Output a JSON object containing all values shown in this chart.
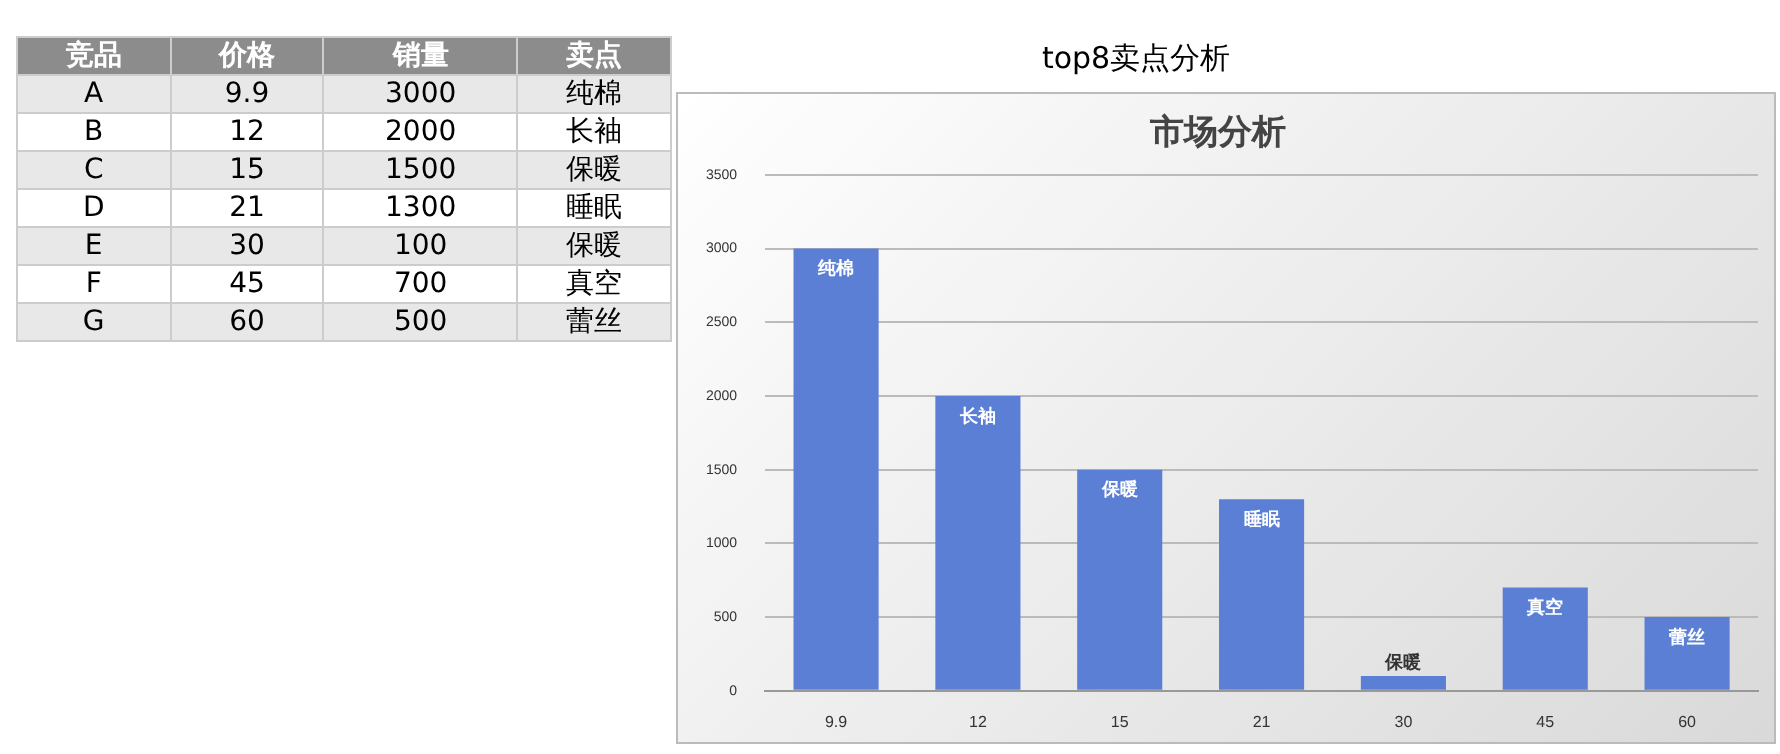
{
  "chart_data": {
    "type": "bar",
    "title": "市场分析",
    "subtitle": "top8卖点分析",
    "categories": [
      "9.9",
      "12",
      "15",
      "21",
      "30",
      "45",
      "60"
    ],
    "values": [
      3000,
      2000,
      1500,
      1300,
      100,
      700,
      500
    ],
    "value_labels": [
      "纯棉",
      "长袖",
      "保暖",
      "睡眠",
      "保暖",
      "真空",
      "蕾丝"
    ],
    "color": "#5a7fd4",
    "ylim": [
      0,
      3500
    ],
    "yticks": [
      0,
      500,
      1000,
      1500,
      2000,
      2500,
      3000,
      3500
    ],
    "grid": "y",
    "annotations": [
      "竞品",
      "价格",
      "销量",
      "卖点",
      "A",
      "B",
      "C",
      "D",
      "E",
      "F",
      "G",
      "3000",
      "2000",
      "1500",
      "1300",
      "100",
      "700",
      "500"
    ]
  }
}
